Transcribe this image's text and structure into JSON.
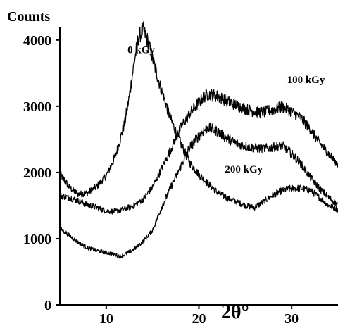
{
  "chart_data": {
    "type": "line",
    "ylabel": "Counts",
    "xlabel": "2θ°",
    "xlim": [
      5,
      35
    ],
    "ylim": [
      0,
      4200
    ],
    "x_ticks": [
      10,
      20,
      30
    ],
    "y_ticks": [
      0,
      1000,
      2000,
      3000,
      4000
    ],
    "grid": false,
    "series": [
      {
        "name": "0 kGy",
        "label_at": [
          12.3,
          3800
        ],
        "points": [
          [
            5,
            1980
          ],
          [
            6,
            1780
          ],
          [
            7,
            1670
          ],
          [
            8,
            1690
          ],
          [
            9,
            1790
          ],
          [
            10,
            1950
          ],
          [
            11,
            2250
          ],
          [
            12,
            2750
          ],
          [
            12.5,
            3150
          ],
          [
            13,
            3650
          ],
          [
            13.5,
            4050
          ],
          [
            14,
            4150
          ],
          [
            14.5,
            3980
          ],
          [
            15,
            3720
          ],
          [
            16,
            3220
          ],
          [
            17,
            2790
          ],
          [
            18,
            2450
          ],
          [
            19,
            2150
          ],
          [
            20,
            1970
          ],
          [
            21,
            1830
          ],
          [
            22,
            1700
          ],
          [
            23,
            1620
          ],
          [
            24,
            1560
          ],
          [
            25,
            1500
          ],
          [
            26,
            1470
          ],
          [
            27,
            1560
          ],
          [
            28,
            1660
          ],
          [
            29,
            1730
          ],
          [
            30,
            1760
          ],
          [
            31,
            1760
          ],
          [
            32,
            1730
          ],
          [
            33,
            1620
          ],
          [
            34,
            1500
          ],
          [
            35,
            1440
          ]
        ]
      },
      {
        "name": "100 kGy",
        "label_at": [
          29.5,
          3350
        ],
        "points": [
          [
            5,
            1650
          ],
          [
            6,
            1620
          ],
          [
            7,
            1570
          ],
          [
            8,
            1510
          ],
          [
            9,
            1470
          ],
          [
            10,
            1420
          ],
          [
            11,
            1410
          ],
          [
            12,
            1450
          ],
          [
            13,
            1500
          ],
          [
            14,
            1600
          ],
          [
            15,
            1780
          ],
          [
            16,
            2060
          ],
          [
            17,
            2360
          ],
          [
            18,
            2670
          ],
          [
            19,
            2890
          ],
          [
            20,
            3060
          ],
          [
            20.5,
            3140
          ],
          [
            21,
            3180
          ],
          [
            22,
            3150
          ],
          [
            23,
            3080
          ],
          [
            24,
            3020
          ],
          [
            25,
            2960
          ],
          [
            26,
            2920
          ],
          [
            27,
            2910
          ],
          [
            28,
            2950
          ],
          [
            29,
            2990
          ],
          [
            30,
            2920
          ],
          [
            31,
            2820
          ],
          [
            32,
            2660
          ],
          [
            33,
            2450
          ],
          [
            34,
            2280
          ],
          [
            35,
            2120
          ]
        ]
      },
      {
        "name": "200 kGy",
        "label_at": [
          22.8,
          2000
        ],
        "points": [
          [
            5,
            1160
          ],
          [
            6,
            1050
          ],
          [
            7,
            940
          ],
          [
            8,
            860
          ],
          [
            9,
            820
          ],
          [
            10,
            790
          ],
          [
            11,
            760
          ],
          [
            11.5,
            730
          ],
          [
            12,
            760
          ],
          [
            13,
            840
          ],
          [
            14,
            960
          ],
          [
            15,
            1130
          ],
          [
            16,
            1480
          ],
          [
            17,
            1790
          ],
          [
            18,
            2080
          ],
          [
            19,
            2380
          ],
          [
            20,
            2550
          ],
          [
            20.5,
            2630
          ],
          [
            21,
            2680
          ],
          [
            22,
            2620
          ],
          [
            23,
            2520
          ],
          [
            24,
            2440
          ],
          [
            25,
            2400
          ],
          [
            26,
            2370
          ],
          [
            27,
            2360
          ],
          [
            28,
            2380
          ],
          [
            29,
            2410
          ],
          [
            30,
            2280
          ],
          [
            31,
            2130
          ],
          [
            32,
            1930
          ],
          [
            33,
            1760
          ],
          [
            34,
            1620
          ],
          [
            35,
            1510
          ]
        ]
      }
    ]
  }
}
